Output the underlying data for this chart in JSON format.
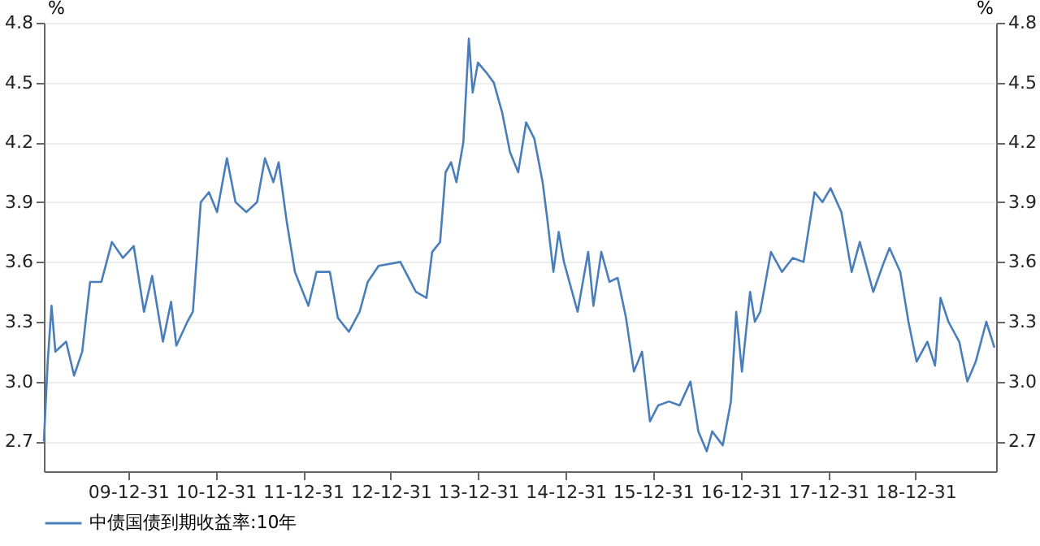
{
  "chart_data": {
    "type": "line",
    "ylabel": "%",
    "y2label": "%",
    "x": [
      "2009-01-13",
      "2009-01-29",
      "2009-02-14",
      "2009-03-02",
      "2009-04-16",
      "2009-05-19",
      "2009-06-22",
      "2009-07-25",
      "2009-09-10",
      "2009-10-24",
      "2009-12-09",
      "2010-01-23",
      "2010-03-07",
      "2010-04-10",
      "2010-05-25",
      "2010-06-28",
      "2010-07-20",
      "2010-09-04",
      "2010-09-27",
      "2010-10-30",
      "2010-12-03",
      "2011-01-06",
      "2011-02-16",
      "2011-03-24",
      "2011-05-08",
      "2011-06-22",
      "2011-07-25",
      "2011-08-29",
      "2011-09-20",
      "2011-10-24",
      "2011-11-27",
      "2012-01-22",
      "2012-02-25",
      "2012-04-21",
      "2012-05-24",
      "2012-07-09",
      "2012-08-23",
      "2012-09-26",
      "2012-11-10",
      "2013-02-09",
      "2013-04-15",
      "2013-05-29",
      "2013-06-22",
      "2013-07-25",
      "2013-08-17",
      "2013-09-09",
      "2013-10-01",
      "2013-10-30",
      "2013-11-22",
      "2013-12-08",
      "2013-12-30",
      "2014-02-03",
      "2014-03-06",
      "2014-04-10",
      "2014-05-13",
      "2014-06-16",
      "2014-07-19",
      "2014-08-22",
      "2014-09-26",
      "2014-10-17",
      "2014-11-10",
      "2014-12-02",
      "2014-12-24",
      "2015-01-27",
      "2015-02-19",
      "2015-04-04",
      "2015-04-26",
      "2015-05-29",
      "2015-07-02",
      "2015-08-05",
      "2015-09-09",
      "2015-10-12",
      "2015-11-15",
      "2015-12-18",
      "2016-01-21",
      "2016-03-06",
      "2016-04-20",
      "2016-06-04",
      "2016-07-07",
      "2016-08-11",
      "2016-09-03",
      "2016-10-17",
      "2016-11-20",
      "2016-12-12",
      "2017-01-05",
      "2017-02-08",
      "2017-02-28",
      "2017-03-22",
      "2017-05-06",
      "2017-06-21",
      "2017-08-05",
      "2017-09-19",
      "2017-11-04",
      "2017-12-07",
      "2018-01-10",
      "2018-02-24",
      "2018-04-08",
      "2018-05-12",
      "2018-07-07",
      "2018-08-21",
      "2018-09-13",
      "2018-10-28",
      "2018-12-01",
      "2019-01-04",
      "2019-02-18",
      "2019-03-22",
      "2019-04-14",
      "2019-05-17",
      "2019-07-01",
      "2019-08-04",
      "2019-09-08",
      "2019-10-22",
      "2019-11-25"
    ],
    "series": [
      {
        "name": "中债国债到期收益率:10年",
        "color": "#4a7ebb",
        "values": [
          2.7,
          3.1,
          3.38,
          3.15,
          3.2,
          3.03,
          3.15,
          3.5,
          3.5,
          3.7,
          3.62,
          3.68,
          3.35,
          3.53,
          3.2,
          3.4,
          3.18,
          3.3,
          3.35,
          3.9,
          3.95,
          3.85,
          4.12,
          3.9,
          3.85,
          3.9,
          4.12,
          4.0,
          4.1,
          3.8,
          3.55,
          3.38,
          3.55,
          3.55,
          3.32,
          3.25,
          3.35,
          3.5,
          3.58,
          3.6,
          3.45,
          3.42,
          3.65,
          3.7,
          4.05,
          4.1,
          4.0,
          4.2,
          4.72,
          4.45,
          4.6,
          4.55,
          4.5,
          4.35,
          4.15,
          4.05,
          4.3,
          4.22,
          4.0,
          3.8,
          3.55,
          3.75,
          3.6,
          3.45,
          3.35,
          3.65,
          3.38,
          3.65,
          3.5,
          3.52,
          3.32,
          3.05,
          3.15,
          2.8,
          2.88,
          2.9,
          2.88,
          3.0,
          2.75,
          2.65,
          2.75,
          2.68,
          2.9,
          3.35,
          3.05,
          3.45,
          3.3,
          3.35,
          3.65,
          3.55,
          3.62,
          3.6,
          3.95,
          3.9,
          3.97,
          3.85,
          3.55,
          3.7,
          3.45,
          3.6,
          3.67,
          3.55,
          3.3,
          3.1,
          3.2,
          3.08,
          3.42,
          3.3,
          3.2,
          3.0,
          3.1,
          3.3,
          3.17
        ]
      }
    ],
    "xlim": [
      "2009-01-13",
      "2019-12-02"
    ],
    "xticks": [
      {
        "value": "2009-12-31",
        "label": "09-12-31"
      },
      {
        "value": "2010-12-31",
        "label": "10-12-31"
      },
      {
        "value": "2011-12-31",
        "label": "11-12-31"
      },
      {
        "value": "2012-12-31",
        "label": "12-12-31"
      },
      {
        "value": "2013-12-31",
        "label": "13-12-31"
      },
      {
        "value": "2014-12-31",
        "label": "14-12-31"
      },
      {
        "value": "2015-12-31",
        "label": "15-12-31"
      },
      {
        "value": "2016-12-31",
        "label": "16-12-31"
      },
      {
        "value": "2017-12-31",
        "label": "17-12-31"
      },
      {
        "value": "2018-12-31",
        "label": "18-12-31"
      }
    ],
    "ylim": [
      2.55,
      4.8
    ],
    "yticks": [
      2.7,
      {
        "value": 3,
        "label": "3.0"
      },
      3.3,
      3.6,
      3.9,
      4.2,
      4.5,
      4.8
    ],
    "y2lim": [
      2.55,
      4.8
    ],
    "y2ticks": [
      2.7,
      {
        "value": 3,
        "label": "3.0"
      },
      3.3,
      3.6,
      3.9,
      4.2,
      4.5,
      4.8
    ],
    "grid": "y",
    "legend": "bottom",
    "line_style": "solid",
    "marker": "none"
  }
}
